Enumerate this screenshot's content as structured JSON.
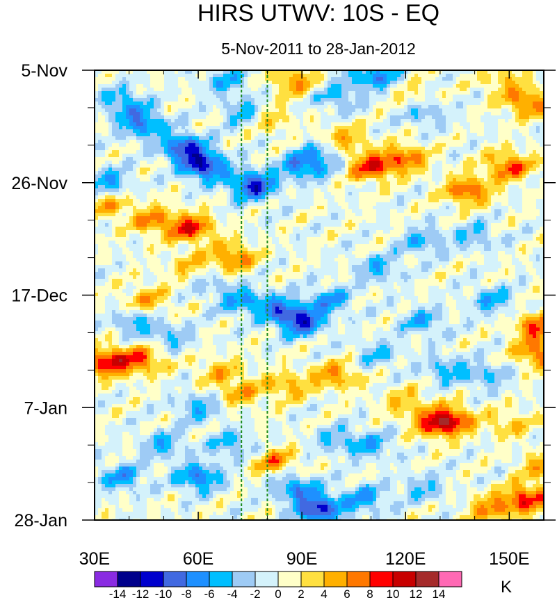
{
  "chart_data": {
    "type": "heatmap",
    "title": "HIRS UTWV: 10S - EQ",
    "subtitle": "5-Nov-2011 to 28-Jan-2012",
    "x_axis": {
      "range": [
        30,
        160
      ],
      "ticks": [
        {
          "value": 30,
          "label": "30E"
        },
        {
          "value": 60,
          "label": "60E"
        },
        {
          "value": 90,
          "label": "90E"
        },
        {
          "value": 120,
          "label": "120E"
        },
        {
          "value": 150,
          "label": "150E"
        }
      ]
    },
    "y_axis": {
      "range_days": [
        0,
        84
      ],
      "direction": "time increases downward",
      "ticks": [
        {
          "day": 0,
          "label": "5-Nov"
        },
        {
          "day": 21,
          "label": "26-Nov"
        },
        {
          "day": 42,
          "label": "17-Dec"
        },
        {
          "day": 63,
          "label": "7-Jan"
        },
        {
          "day": 84,
          "label": "28-Jan"
        }
      ]
    },
    "reference_lines": [
      {
        "longitude": 72.5,
        "style": "dashed",
        "color": "#1a8a1a"
      },
      {
        "longitude": 80,
        "style": "dashed",
        "color": "#1a8a1a"
      }
    ],
    "colorbar": {
      "unit": "K",
      "levels": [
        -14,
        -12,
        -10,
        -8,
        -6,
        -4,
        -2,
        0,
        2,
        4,
        6,
        8,
        10,
        12,
        14
      ],
      "level_labels": [
        "-14",
        "-12",
        "-10",
        "-8",
        "-6",
        "-4",
        "-2",
        "0",
        "2",
        "4",
        "6",
        "8",
        "10",
        "12",
        "14"
      ],
      "colors": [
        "#8a2be2",
        "#00008b",
        "#0000cd",
        "#4169e1",
        "#1e90ff",
        "#00bfff",
        "#9ecbf5",
        "#d4f2fb",
        "#ffffc8",
        "#ffe040",
        "#ffb000",
        "#ff7800",
        "#ff0000",
        "#c80000",
        "#a52a2a",
        "#ff69b4"
      ]
    },
    "features": [
      {
        "lon": 62,
        "day": 18,
        "value": -11
      },
      {
        "lon": 56,
        "day": 14.5,
        "value": -10
      },
      {
        "lon": 76,
        "day": 21.5,
        "value": -11
      },
      {
        "lon": 44,
        "day": 10,
        "value": -8
      },
      {
        "lon": 90,
        "day": 18,
        "value": -7
      },
      {
        "lon": 96,
        "day": 16,
        "value": -5
      },
      {
        "lon": 74,
        "day": 8,
        "value": -6
      },
      {
        "lon": 38,
        "day": 6,
        "value": -6
      },
      {
        "lon": 34,
        "day": 21,
        "value": -6
      },
      {
        "lon": 68,
        "day": 2,
        "value": -5
      },
      {
        "lon": 108,
        "day": 0.5,
        "value": -5
      },
      {
        "lon": 115,
        "day": 2,
        "value": -5
      },
      {
        "lon": 100,
        "day": 5,
        "value": -5
      },
      {
        "lon": 125,
        "day": 8,
        "value": -4
      },
      {
        "lon": 110,
        "day": 18,
        "value": 9
      },
      {
        "lon": 120,
        "day": 16.5,
        "value": 7
      },
      {
        "lon": 102,
        "day": 13,
        "value": 5
      },
      {
        "lon": 88,
        "day": 2,
        "value": 6
      },
      {
        "lon": 80,
        "day": 9,
        "value": 5
      },
      {
        "lon": 120,
        "day": 4,
        "value": 4
      },
      {
        "lon": 150,
        "day": 18,
        "value": 8
      },
      {
        "lon": 138,
        "day": 22.5,
        "value": 8
      },
      {
        "lon": 155,
        "day": 6,
        "value": 7
      },
      {
        "lon": 148,
        "day": 2,
        "value": 4
      },
      {
        "lon": 58,
        "day": 29.5,
        "value": 9
      },
      {
        "lon": 47,
        "day": 28,
        "value": 6
      },
      {
        "lon": 70,
        "day": 35,
        "value": 7
      },
      {
        "lon": 58,
        "day": 37,
        "value": 5
      },
      {
        "lon": 45,
        "day": 43,
        "value": 5
      },
      {
        "lon": 34,
        "day": 25,
        "value": 5
      },
      {
        "lon": 90,
        "day": 47,
        "value": -10
      },
      {
        "lon": 83,
        "day": 44.5,
        "value": -7
      },
      {
        "lon": 98,
        "day": 43,
        "value": -6
      },
      {
        "lon": 72,
        "day": 43,
        "value": -6
      },
      {
        "lon": 62,
        "day": 39,
        "value": -4
      },
      {
        "lon": 112,
        "day": 37,
        "value": -5
      },
      {
        "lon": 125,
        "day": 32,
        "value": -5
      },
      {
        "lon": 140,
        "day": 31,
        "value": -4
      },
      {
        "lon": 145,
        "day": 43,
        "value": -5
      },
      {
        "lon": 125,
        "day": 47,
        "value": -5
      },
      {
        "lon": 42,
        "day": 47,
        "value": -5
      },
      {
        "lon": 52,
        "day": 50,
        "value": -4
      },
      {
        "lon": 34,
        "day": 54.5,
        "value": 10
      },
      {
        "lon": 44,
        "day": 54,
        "value": 7
      },
      {
        "lon": 158,
        "day": 48,
        "value": 8
      },
      {
        "lon": 158,
        "day": 53,
        "value": 7
      },
      {
        "lon": 100,
        "day": 57,
        "value": 6
      },
      {
        "lon": 86,
        "day": 59,
        "value": 5
      },
      {
        "lon": 72,
        "day": 60,
        "value": 5
      },
      {
        "lon": 66,
        "day": 56,
        "value": 4
      },
      {
        "lon": 112,
        "day": 53,
        "value": -4
      },
      {
        "lon": 132,
        "day": 56,
        "value": -5
      },
      {
        "lon": 144,
        "day": 57,
        "value": -4
      },
      {
        "lon": 60,
        "day": 63,
        "value": -5
      },
      {
        "lon": 133,
        "day": 65.5,
        "value": 9
      },
      {
        "lon": 128,
        "day": 66,
        "value": 6
      },
      {
        "lon": 150,
        "day": 66,
        "value": 4
      },
      {
        "lon": 120,
        "day": 62,
        "value": 4
      },
      {
        "lon": 82,
        "day": 73,
        "value": 6
      },
      {
        "lon": 60,
        "day": 76,
        "value": -8
      },
      {
        "lon": 38,
        "day": 76,
        "value": -6
      },
      {
        "lon": 95,
        "day": 82,
        "value": -11
      },
      {
        "lon": 88,
        "day": 78,
        "value": -7
      },
      {
        "lon": 108,
        "day": 80,
        "value": -6
      },
      {
        "lon": 70,
        "day": 70,
        "value": -5
      },
      {
        "lon": 50,
        "day": 70,
        "value": -5
      },
      {
        "lon": 100,
        "day": 69,
        "value": -4
      },
      {
        "lon": 155,
        "day": 80,
        "value": 9
      },
      {
        "lon": 145,
        "day": 82,
        "value": 6
      },
      {
        "lon": 160,
        "day": 74,
        "value": 5
      },
      {
        "lon": 125,
        "day": 78,
        "value": -4
      },
      {
        "lon": 110,
        "day": 70,
        "value": -5
      }
    ]
  }
}
